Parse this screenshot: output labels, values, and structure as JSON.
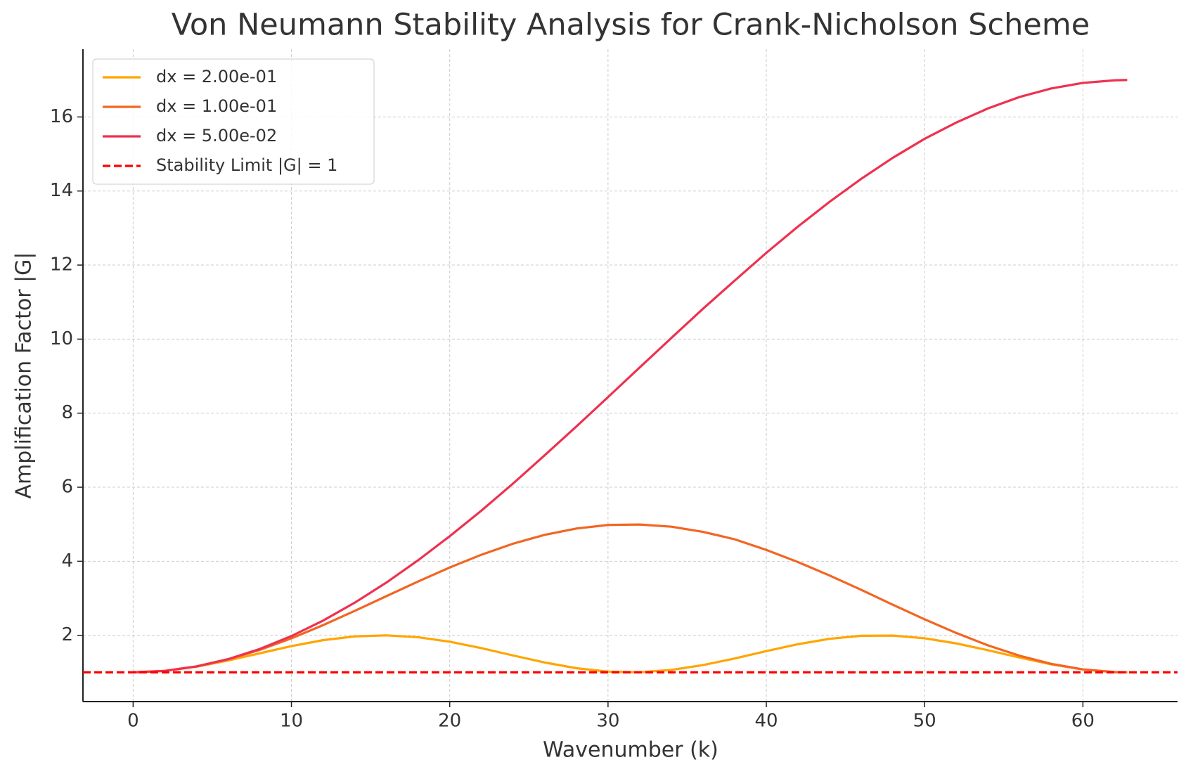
{
  "chart_data": {
    "type": "line",
    "title": "Von Neumann Stability Analysis for Crank-Nicholson Scheme",
    "x_label": "Wavenumber (k)",
    "y_label": "Amplification Factor |G|",
    "x": [
      0,
      2,
      4,
      6,
      8,
      10,
      12,
      14,
      16,
      18,
      20,
      22,
      24,
      26,
      28,
      30,
      32,
      34,
      36,
      38,
      40,
      42,
      44,
      46,
      48,
      50,
      52,
      54,
      56,
      58,
      60,
      62,
      62.8
    ],
    "series": [
      {
        "name": "dx = 2.00e-01",
        "color": "#ffa500",
        "values": [
          1,
          1.04,
          1.152,
          1.319,
          1.515,
          1.708,
          1.869,
          1.971,
          1.998,
          1.948,
          1.827,
          1.654,
          1.456,
          1.266,
          1.112,
          1.02,
          1.003,
          1.065,
          1.196,
          1.374,
          1.573,
          1.76,
          1.906,
          1.988,
          1.992,
          1.92,
          1.781,
          1.597,
          1.399,
          1.216,
          1.078,
          1.007,
          1
        ]
      },
      {
        "name": "dx = 1.00e-01",
        "color": "#f26522",
        "values": [
          1,
          1.04,
          1.158,
          1.349,
          1.606,
          1.919,
          2.275,
          2.66,
          3.058,
          3.454,
          3.832,
          4.177,
          4.475,
          4.714,
          4.884,
          4.98,
          4.993,
          4.934,
          4.794,
          4.594,
          4.307,
          3.978,
          3.615,
          3.228,
          2.825,
          2.433,
          2.063,
          1.729,
          1.449,
          1.229,
          1.08,
          1.007,
          1
        ]
      },
      {
        "name": "dx = 5.00e-02",
        "color": "#ee3150",
        "values": [
          1,
          1.04,
          1.16,
          1.357,
          1.632,
          1.98,
          2.397,
          2.882,
          3.426,
          4.027,
          4.677,
          5.368,
          6.1,
          6.864,
          7.64,
          8.434,
          9.234,
          10.03,
          10.82,
          11.58,
          12.33,
          13.04,
          13.71,
          14.33,
          14.9,
          15.41,
          15.85,
          16.23,
          16.54,
          16.77,
          16.92,
          16.99,
          17
        ]
      }
    ],
    "reference_line": {
      "name": "Stability Limit |G| = 1",
      "value": 1,
      "color": "#ff0000"
    },
    "xlim": [
      -3.17,
      65.98
    ],
    "ylim": [
      0.21,
      17.83
    ],
    "xticks": [
      0,
      10,
      20,
      30,
      40,
      50,
      60
    ],
    "yticks": [
      2,
      4,
      6,
      8,
      10,
      12,
      14,
      16
    ],
    "grid": true,
    "legend": "upper left"
  }
}
